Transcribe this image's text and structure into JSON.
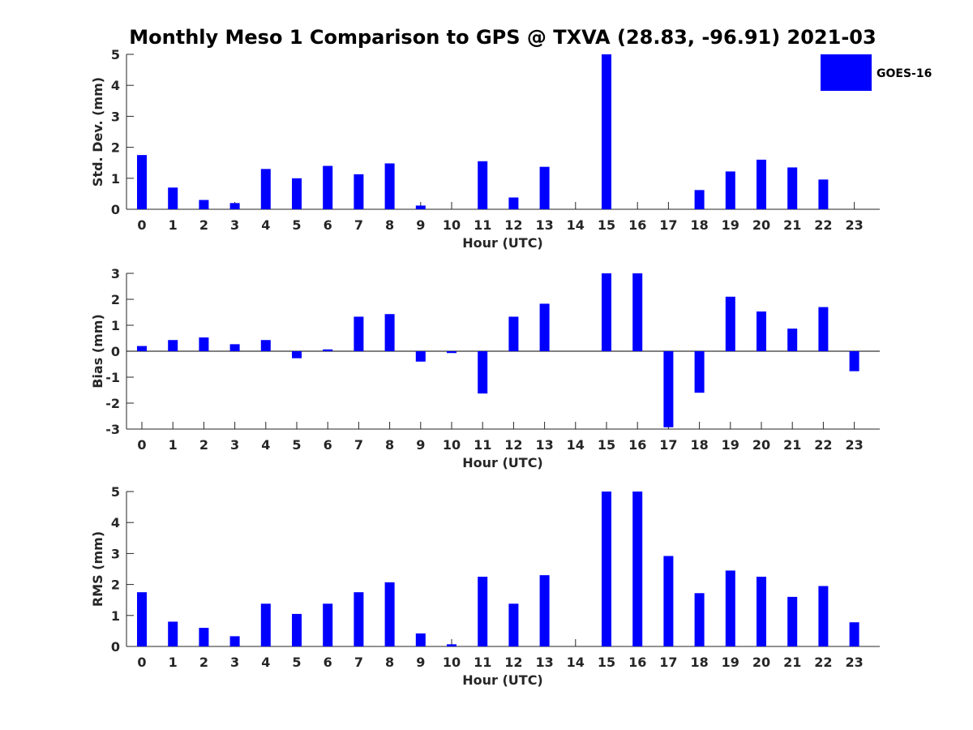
{
  "figure": {
    "title": "Monthly Meso 1 Comparison to GPS @ TXVA (28.83, -96.91) 2021-03",
    "legend_label": "GOES-16",
    "bar_color": "#0000ff",
    "legend_position": "top-right"
  },
  "chart_data": [
    {
      "type": "bar",
      "ylabel": "Std. Dev. (mm)",
      "xlabel": "Hour (UTC)",
      "ylim": [
        0,
        5
      ],
      "yticks": [
        0,
        1,
        2,
        3,
        4,
        5
      ],
      "categories": [
        "0",
        "1",
        "2",
        "3",
        "4",
        "5",
        "6",
        "7",
        "8",
        "9",
        "10",
        "11",
        "12",
        "13",
        "14",
        "15",
        "16",
        "17",
        "18",
        "19",
        "20",
        "21",
        "22",
        "23"
      ],
      "series": [
        {
          "name": "GOES-16",
          "values": [
            1.75,
            0.7,
            0.3,
            0.2,
            1.3,
            1.0,
            1.4,
            1.13,
            1.48,
            0.12,
            null,
            1.55,
            0.38,
            1.37,
            null,
            5.0,
            null,
            null,
            0.62,
            1.22,
            1.6,
            1.35,
            0.96,
            null
          ]
        }
      ]
    },
    {
      "type": "bar",
      "ylabel": "Bias (mm)",
      "xlabel": "Hour (UTC)",
      "ylim": [
        -3,
        3
      ],
      "yticks": [
        -3,
        -2,
        -1,
        0,
        1,
        2,
        3
      ],
      "categories": [
        "0",
        "1",
        "2",
        "3",
        "4",
        "5",
        "6",
        "7",
        "8",
        "9",
        "10",
        "11",
        "12",
        "13",
        "14",
        "15",
        "16",
        "17",
        "18",
        "19",
        "20",
        "21",
        "22",
        "23"
      ],
      "series": [
        {
          "name": "GOES-16",
          "values": [
            0.2,
            0.43,
            0.53,
            0.27,
            0.43,
            -0.27,
            0.07,
            1.33,
            1.43,
            -0.4,
            -0.07,
            -1.63,
            1.33,
            1.83,
            null,
            3.0,
            3.0,
            -2.93,
            -1.6,
            2.1,
            1.53,
            0.87,
            1.7,
            -0.77
          ]
        }
      ]
    },
    {
      "type": "bar",
      "ylabel": "RMS (mm)",
      "xlabel": "Hour (UTC)",
      "ylim": [
        0,
        5
      ],
      "yticks": [
        0,
        1,
        2,
        3,
        4,
        5
      ],
      "categories": [
        "0",
        "1",
        "2",
        "3",
        "4",
        "5",
        "6",
        "7",
        "8",
        "9",
        "10",
        "11",
        "12",
        "13",
        "14",
        "15",
        "16",
        "17",
        "18",
        "19",
        "20",
        "21",
        "22",
        "23"
      ],
      "series": [
        {
          "name": "GOES-16",
          "values": [
            1.75,
            0.8,
            0.6,
            0.33,
            1.38,
            1.05,
            1.38,
            1.75,
            2.07,
            0.42,
            0.07,
            2.25,
            1.38,
            2.3,
            null,
            5.0,
            5.0,
            2.92,
            1.72,
            2.45,
            2.25,
            1.6,
            1.95,
            0.78
          ]
        }
      ]
    }
  ]
}
